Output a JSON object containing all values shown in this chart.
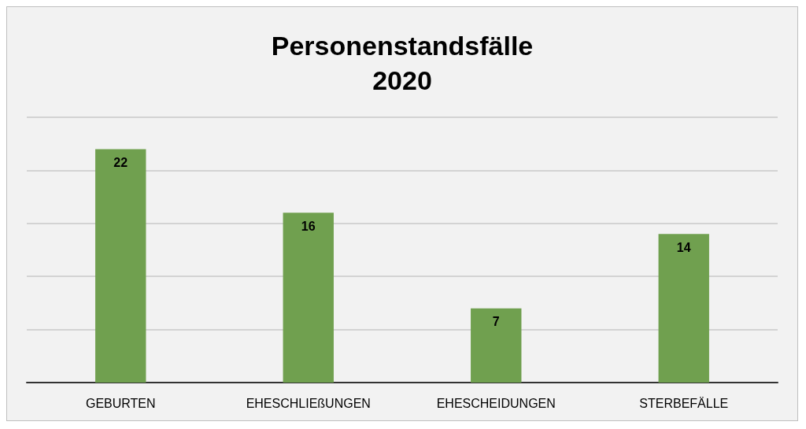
{
  "chart_data": {
    "type": "bar",
    "title": "Personenstandsfälle\n2020",
    "categories": [
      "GEBURTEN",
      "EHESCHLIEßUNGEN",
      "EHESCHEIDUNGEN",
      "STERBEFÄLLE"
    ],
    "values": [
      22,
      16,
      7,
      14
    ],
    "color": "#70a04f",
    "ylim": [
      0,
      25
    ],
    "yticks": [
      {
        "value": 0,
        "label": null
      },
      {
        "value": 5,
        "label": null
      },
      {
        "value": 10,
        "label": null
      },
      {
        "value": 15,
        "label": null
      },
      {
        "value": 20,
        "label": null
      },
      {
        "value": 25,
        "label": null
      }
    ],
    "tick_labels": "x",
    "grid": "y",
    "data_labels": true
  }
}
